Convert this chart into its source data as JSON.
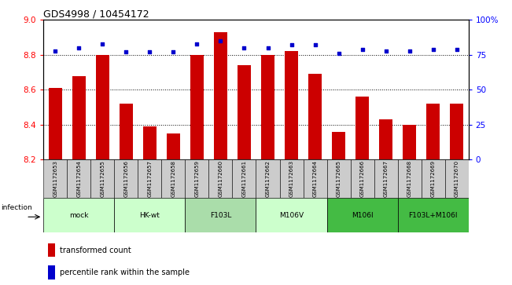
{
  "title": "GDS4998 / 10454172",
  "samples": [
    "GSM1172653",
    "GSM1172654",
    "GSM1172655",
    "GSM1172656",
    "GSM1172657",
    "GSM1172658",
    "GSM1172659",
    "GSM1172660",
    "GSM1172661",
    "GSM1172662",
    "GSM1172663",
    "GSM1172664",
    "GSM1172665",
    "GSM1172666",
    "GSM1172667",
    "GSM1172668",
    "GSM1172669",
    "GSM1172670"
  ],
  "bar_values": [
    8.61,
    8.68,
    8.8,
    8.52,
    8.39,
    8.35,
    8.8,
    8.93,
    8.74,
    8.8,
    8.82,
    8.69,
    8.36,
    8.56,
    8.43,
    8.4,
    8.52,
    8.52
  ],
  "pct_values": [
    78,
    80,
    83,
    77,
    77,
    77,
    83,
    85,
    80,
    80,
    82,
    82,
    76,
    79,
    78,
    78,
    79,
    79
  ],
  "bar_color": "#cc0000",
  "pct_color": "#0000cc",
  "ylim_left": [
    8.2,
    9.0
  ],
  "ylim_right": [
    0,
    100
  ],
  "yticks_left": [
    8.2,
    8.4,
    8.6,
    8.8,
    9.0
  ],
  "yticks_right": [
    0,
    25,
    50,
    75,
    100
  ],
  "ytick_labels_right": [
    "0",
    "25",
    "50",
    "75",
    "100%"
  ],
  "group_info": [
    {
      "si": 0,
      "ei": 2,
      "label": "mock",
      "color": "#ccffcc"
    },
    {
      "si": 3,
      "ei": 5,
      "label": "HK-wt",
      "color": "#ccffcc"
    },
    {
      "si": 6,
      "ei": 8,
      "label": "F103L",
      "color": "#aaddaa"
    },
    {
      "si": 9,
      "ei": 11,
      "label": "M106V",
      "color": "#ccffcc"
    },
    {
      "si": 12,
      "ei": 14,
      "label": "M106I",
      "color": "#44bb44"
    },
    {
      "si": 15,
      "ei": 17,
      "label": "F103L+M106I",
      "color": "#44bb44"
    }
  ],
  "legend_bar_label": "transformed count",
  "legend_pct_label": "percentile rank within the sample",
  "xticklabel_bg": "#cccccc"
}
